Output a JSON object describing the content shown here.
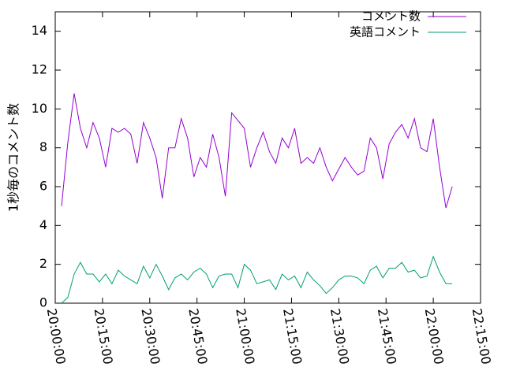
{
  "chart_data": {
    "type": "line",
    "ylabel": "1秒毎のコメント数",
    "x": [
      "20:02:00",
      "20:04:00",
      "20:06:00",
      "20:08:00",
      "20:10:00",
      "20:12:00",
      "20:14:00",
      "20:16:00",
      "20:18:00",
      "20:20:00",
      "20:22:00",
      "20:24:00",
      "20:26:00",
      "20:28:00",
      "20:30:00",
      "20:32:00",
      "20:34:00",
      "20:36:00",
      "20:38:00",
      "20:40:00",
      "20:42:00",
      "20:44:00",
      "20:46:00",
      "20:48:00",
      "20:50:00",
      "20:52:00",
      "20:54:00",
      "20:56:00",
      "20:58:00",
      "21:00:00",
      "21:02:00",
      "21:04:00",
      "21:06:00",
      "21:08:00",
      "21:10:00",
      "21:12:00",
      "21:14:00",
      "21:16:00",
      "21:18:00",
      "21:20:00",
      "21:22:00",
      "21:24:00",
      "21:26:00",
      "21:28:00",
      "21:30:00",
      "21:32:00",
      "21:34:00",
      "21:36:00",
      "21:38:00",
      "21:40:00",
      "21:42:00",
      "21:44:00",
      "21:46:00",
      "21:48:00",
      "21:50:00",
      "21:52:00",
      "21:54:00",
      "21:56:00",
      "21:58:00",
      "22:00:00",
      "22:02:00",
      "22:04:00",
      "22:06:00"
    ],
    "series": [
      {
        "name": "コメント数",
        "color": "#9400d3",
        "values": [
          5.0,
          8.3,
          10.8,
          9.0,
          8.0,
          9.3,
          8.5,
          7.0,
          9.0,
          8.8,
          9.0,
          8.7,
          7.2,
          9.3,
          8.5,
          7.5,
          5.4,
          8.0,
          8.0,
          9.5,
          8.5,
          6.5,
          7.5,
          7.0,
          8.7,
          7.5,
          5.5,
          9.8,
          9.4,
          9.0,
          7.0,
          8.0,
          8.8,
          7.8,
          7.2,
          8.5,
          8.0,
          9.0,
          7.2,
          7.5,
          7.2,
          8.0,
          7.0,
          6.3,
          6.9,
          7.5,
          7.0,
          6.6,
          6.8,
          8.5,
          8.0,
          6.4,
          8.2,
          8.8,
          9.2,
          8.5,
          9.5,
          8.0,
          7.8,
          9.5,
          7.0,
          4.9,
          6.0
        ]
      },
      {
        "name": "英語コメント",
        "color": "#009e73",
        "values": [
          0.0,
          0.3,
          1.5,
          2.1,
          1.5,
          1.5,
          1.1,
          1.5,
          1.0,
          1.7,
          1.4,
          1.2,
          1.0,
          1.9,
          1.3,
          2.0,
          1.4,
          0.7,
          1.3,
          1.5,
          1.2,
          1.6,
          1.8,
          1.5,
          0.8,
          1.4,
          1.5,
          1.5,
          0.8,
          2.0,
          1.7,
          1.0,
          1.1,
          1.2,
          0.7,
          1.5,
          1.2,
          1.4,
          0.8,
          1.6,
          1.2,
          0.9,
          0.5,
          0.8,
          1.2,
          1.4,
          1.4,
          1.3,
          1.0,
          1.7,
          1.9,
          1.3,
          1.8,
          1.8,
          2.1,
          1.6,
          1.7,
          1.3,
          1.4,
          2.4,
          1.6,
          1.0,
          1.0
        ]
      }
    ],
    "xlim": [
      "20:00:00",
      "22:15:00"
    ],
    "xticks": [
      "20:00:00",
      "20:15:00",
      "20:30:00",
      "20:45:00",
      "21:00:00",
      "21:15:00",
      "21:30:00",
      "21:45:00",
      "22:00:00",
      "22:15:00"
    ],
    "ylim": [
      0,
      15
    ],
    "yticks": [
      0,
      2,
      4,
      6,
      8,
      10,
      12,
      14
    ],
    "legend": "upper right"
  }
}
